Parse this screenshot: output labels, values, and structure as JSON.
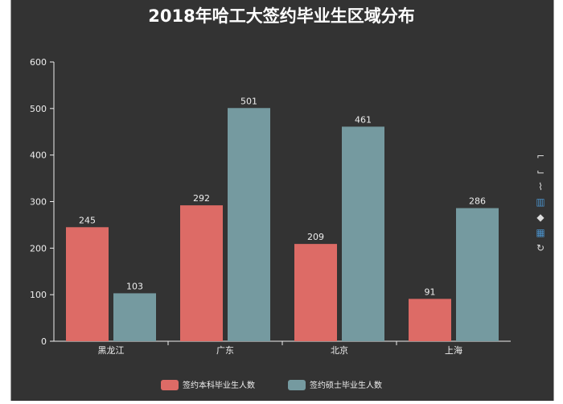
{
  "chart_data": {
    "type": "bar",
    "title": "2018年哈工大签约毕业生区域分布",
    "categories": [
      "黑龙江",
      "广东",
      "北京",
      "上海"
    ],
    "series": [
      {
        "name": "签约本科毕业生人数",
        "values": [
          245,
          292,
          209,
          91
        ],
        "color": "#dd6b66"
      },
      {
        "name": "签约硕士毕业生人数",
        "values": [
          103,
          501,
          461,
          286
        ],
        "color": "#759aa0"
      }
    ],
    "ylim": [
      0,
      600
    ],
    "yticks": [
      0,
      100,
      200,
      300,
      400,
      500,
      600
    ],
    "legend_position": "bottom",
    "grid": false
  },
  "colors": {
    "background": "#333333",
    "axis": "#eeeeee",
    "text": "#eeeeee"
  },
  "toolbox": {
    "items": [
      {
        "icon": "zoom-icon",
        "glyph": "⌐"
      },
      {
        "icon": "zoom-reset-icon",
        "glyph": "⌙"
      },
      {
        "icon": "line-chart-icon",
        "glyph": "⌇"
      },
      {
        "icon": "bar-chart-icon",
        "glyph": "▥"
      },
      {
        "icon": "stack-icon",
        "glyph": "◆"
      },
      {
        "icon": "tiled-icon",
        "glyph": "▦"
      },
      {
        "icon": "restore-icon",
        "glyph": "↻"
      }
    ]
  }
}
